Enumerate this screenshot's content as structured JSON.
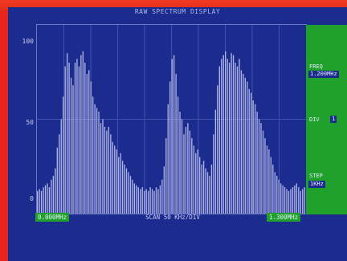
{
  "header": {
    "title": "RAW SPECTRUM DISPLAY"
  },
  "plot": {
    "y_ticks": [
      "100",
      "50",
      "0"
    ],
    "start_freq": "0.000MHz",
    "end_freq": "1.300MHz",
    "scan_label": "SCAN 50 KHz/DIV"
  },
  "side_panel": {
    "freq_label": "FREQ",
    "freq_value": "1.200MHz",
    "step_row_label": "DIV",
    "step_row_value": "1",
    "step_label": "STEP",
    "step_value": "1KHz"
  },
  "colors": {
    "background": "#1c2b8e",
    "trace": "#c8ccf5",
    "grid": "#4050b0",
    "panel": "#1fa12c",
    "bezel": "#e8251c"
  },
  "chart_data": {
    "type": "bar",
    "x_range": [
      0,
      1.3
    ],
    "ylim": [
      0,
      100
    ],
    "grid": true,
    "values": [
      12,
      13,
      12,
      14,
      15,
      16,
      14,
      18,
      20,
      24,
      35,
      42,
      50,
      62,
      78,
      85,
      80,
      72,
      68,
      80,
      82,
      78,
      84,
      86,
      80,
      74,
      76,
      70,
      62,
      58,
      56,
      54,
      48,
      50,
      46,
      44,
      46,
      42,
      38,
      36,
      34,
      30,
      32,
      28,
      26,
      24,
      22,
      20,
      18,
      16,
      15,
      14,
      13,
      14,
      12,
      13,
      12,
      14,
      13,
      12,
      14,
      13,
      15,
      18,
      25,
      40,
      58,
      70,
      82,
      84,
      74,
      62,
      54,
      50,
      42,
      46,
      48,
      44,
      40,
      36,
      32,
      34,
      30,
      26,
      28,
      24,
      22,
      20,
      26,
      42,
      55,
      68,
      78,
      82,
      84,
      86,
      82,
      80,
      85,
      84,
      80,
      78,
      82,
      76,
      74,
      72,
      70,
      66,
      64,
      60,
      58,
      54,
      50,
      48,
      44,
      40,
      36,
      34,
      30,
      26,
      22,
      20,
      18,
      16,
      15,
      14,
      13,
      12,
      13,
      14,
      15,
      16,
      14,
      12,
      13,
      14
    ]
  }
}
